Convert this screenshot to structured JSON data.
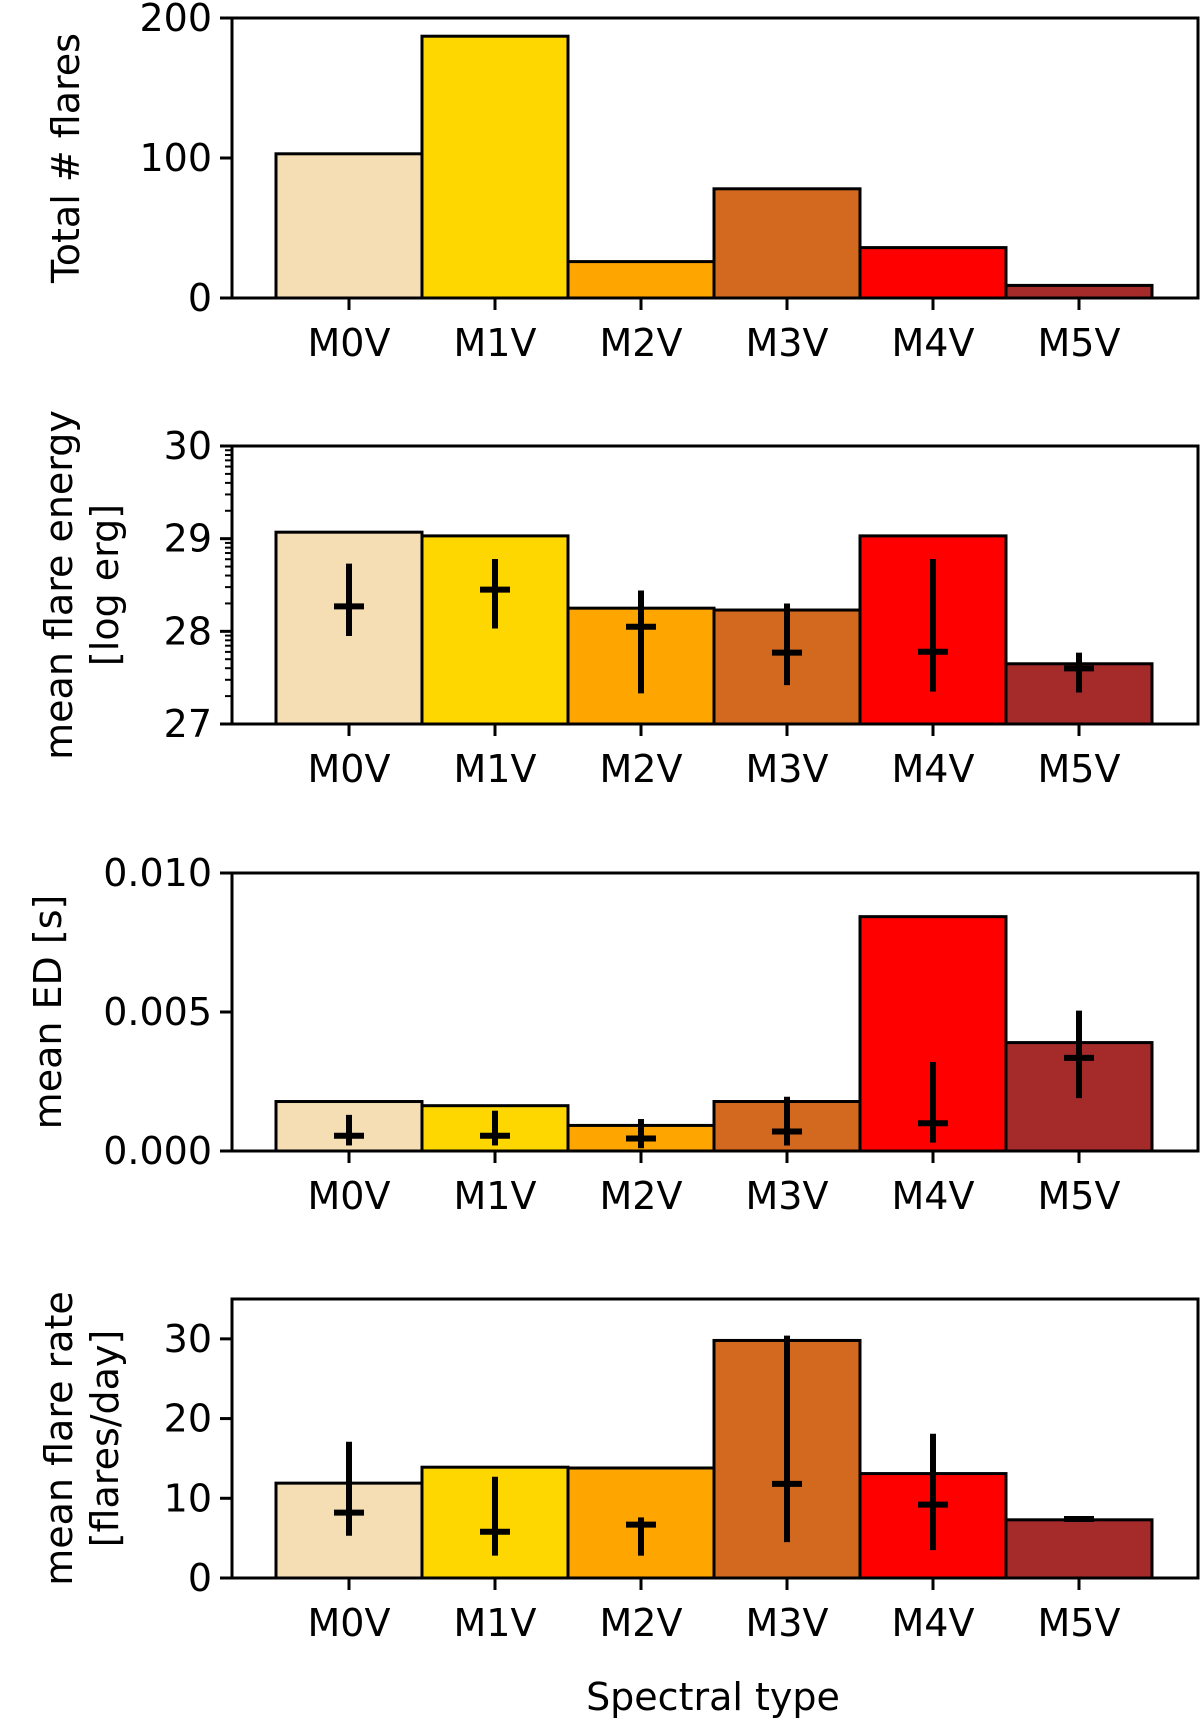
{
  "chart_data": {
    "type": "bar",
    "xlabel": "Spectral type",
    "categories": [
      "M0V",
      "M1V",
      "M2V",
      "M3V",
      "M4V",
      "M5V"
    ],
    "colors": [
      "#f5deb3",
      "#ffd700",
      "#ffa500",
      "#d2691e",
      "#ff0000",
      "#a52a2a"
    ],
    "panels": [
      {
        "ylabel": [
          "Total # flares"
        ],
        "ylim": [
          0,
          200
        ],
        "yticks": [
          0,
          100,
          200
        ],
        "yticklabels": [
          "0",
          "100",
          "200"
        ],
        "minor_ticks": false,
        "values": [
          103,
          187,
          26,
          78,
          36,
          9
        ],
        "errorbars": null
      },
      {
        "ylabel": [
          "mean flare energy",
          "[log erg]"
        ],
        "ylim": [
          27,
          30
        ],
        "yticks": [
          27,
          28,
          29,
          30
        ],
        "yticklabels": [
          "27",
          "28",
          "29",
          "30"
        ],
        "minor_ticks": true,
        "values": [
          29.07,
          29.03,
          28.25,
          28.23,
          29.03,
          27.65
        ],
        "errorbars": [
          {
            "center": 28.27,
            "low": 27.95,
            "high": 28.73
          },
          {
            "center": 28.45,
            "low": 28.03,
            "high": 28.78
          },
          {
            "center": 28.05,
            "low": 27.33,
            "high": 28.44
          },
          {
            "center": 27.77,
            "low": 27.42,
            "high": 28.3
          },
          {
            "center": 27.78,
            "low": 27.35,
            "high": 28.78
          },
          {
            "center": 27.6,
            "low": 27.34,
            "high": 27.77
          }
        ]
      },
      {
        "ylabel": [
          "mean ED [s]"
        ],
        "ylim": [
          0,
          0.01
        ],
        "yticks": [
          0,
          0.005,
          0.01
        ],
        "yticklabels": [
          "0.000",
          "0.005",
          "0.010"
        ],
        "minor_ticks": false,
        "values": [
          0.00178,
          0.00163,
          0.00092,
          0.00178,
          0.00843,
          0.0039
        ],
        "errorbars": [
          {
            "center": 0.00055,
            "low": 0.0002,
            "high": 0.0013
          },
          {
            "center": 0.00055,
            "low": 0.0002,
            "high": 0.00145
          },
          {
            "center": 0.00045,
            "low": 0.0001,
            "high": 0.00115
          },
          {
            "center": 0.0007,
            "low": 0.0002,
            "high": 0.00195
          },
          {
            "center": 0.001,
            "low": 0.0003,
            "high": 0.0032
          },
          {
            "center": 0.00335,
            "low": 0.0019,
            "high": 0.00505
          }
        ]
      },
      {
        "ylabel": [
          "mean flare rate",
          "[flares/day]"
        ],
        "ylim": [
          0,
          35
        ],
        "yticks": [
          0,
          10,
          20,
          30
        ],
        "yticklabels": [
          "0",
          "10",
          "20",
          "30"
        ],
        "minor_ticks": false,
        "values": [
          11.9,
          13.9,
          13.8,
          29.8,
          13.1,
          7.3
        ],
        "errorbars": [
          {
            "center": 8.2,
            "low": 5.3,
            "high": 17.1
          },
          {
            "center": 5.8,
            "low": 2.8,
            "high": 12.7
          },
          {
            "center": 6.7,
            "low": 2.8,
            "high": 7.6
          },
          {
            "center": 11.8,
            "low": 4.5,
            "high": 30.4
          },
          {
            "center": 9.2,
            "low": 3.5,
            "high": 18.1
          },
          {
            "center": 7.4,
            "low": 7.2,
            "high": 7.6
          }
        ]
      }
    ]
  }
}
